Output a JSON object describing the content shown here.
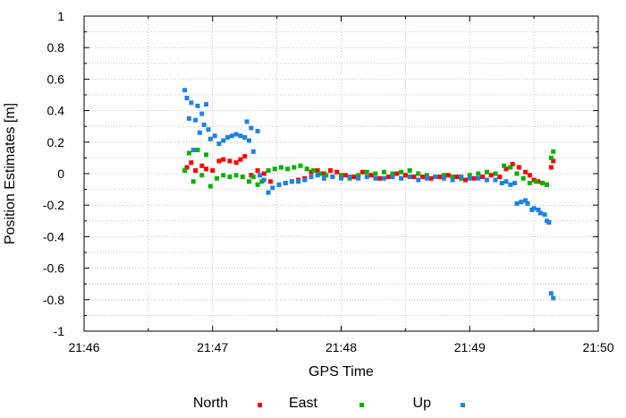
{
  "chart_data": {
    "type": "scatter",
    "xlabel": "GPS Time",
    "ylabel": "Position Estimates [m]",
    "x_ticks": [
      "21:46",
      "21:47",
      "21:48",
      "21:49",
      "21:50"
    ],
    "xlim": [
      "21:46",
      "21:50"
    ],
    "ylim": [
      -1,
      1
    ],
    "y_ticks": [
      1,
      0.8,
      0.6,
      0.4,
      0.2,
      0,
      -0.2,
      -0.4,
      -0.6,
      -0.8,
      -1
    ],
    "y_tick_labels": [
      "1",
      "0.8",
      "0.6",
      "0.4",
      "0.2",
      "0",
      "-0.2",
      "-0.4",
      "-0.6",
      "-0.8",
      "-1"
    ],
    "grid": true,
    "legend_position": "bottom",
    "series": [
      {
        "name": "North",
        "color": "#ff0000",
        "points": [
          [
            "21:46:48",
            0.04
          ],
          [
            "21:46:50",
            0.07
          ],
          [
            "21:46:52",
            0.02
          ],
          [
            "21:46:55",
            0.05
          ],
          [
            "21:46:57",
            0.03
          ],
          [
            "21:47:00",
            0.02
          ],
          [
            "21:47:03",
            0.08
          ],
          [
            "21:47:05",
            0.09
          ],
          [
            "21:47:08",
            0.08
          ],
          [
            "21:47:11",
            0.07
          ],
          [
            "21:47:13",
            0.09
          ],
          [
            "21:47:15",
            0.11
          ],
          [
            "21:47:18",
            -0.01
          ],
          [
            "21:47:21",
            0.02
          ],
          [
            "21:47:24",
            0.0
          ],
          [
            "21:47:27",
            -0.05
          ],
          [
            "21:47:31",
            -0.07
          ],
          [
            "21:47:34",
            -0.06
          ],
          [
            "21:47:37",
            -0.05
          ],
          [
            "21:47:40",
            -0.04
          ],
          [
            "21:47:43",
            -0.03
          ],
          [
            "21:47:46",
            0.01
          ],
          [
            "21:47:49",
            0.02
          ],
          [
            "21:47:52",
            0.0
          ],
          [
            "21:47:55",
            0.02
          ],
          [
            "21:47:58",
            0.01
          ],
          [
            "21:48:02",
            -0.01
          ],
          [
            "21:48:06",
            -0.02
          ],
          [
            "21:48:10",
            0.01
          ],
          [
            "21:48:14",
            -0.01
          ],
          [
            "21:48:18",
            -0.03
          ],
          [
            "21:48:22",
            -0.02
          ],
          [
            "21:48:26",
            0.0
          ],
          [
            "21:48:30",
            -0.01
          ],
          [
            "21:48:34",
            -0.02
          ],
          [
            "21:48:38",
            -0.02
          ],
          [
            "21:48:42",
            -0.03
          ],
          [
            "21:48:46",
            -0.02
          ],
          [
            "21:48:50",
            -0.01
          ],
          [
            "21:48:54",
            -0.02
          ],
          [
            "21:48:58",
            -0.04
          ],
          [
            "21:49:02",
            -0.03
          ],
          [
            "21:49:06",
            -0.02
          ],
          [
            "21:49:10",
            -0.01
          ],
          [
            "21:49:14",
            -0.02
          ],
          [
            "21:49:17",
            0.03
          ],
          [
            "21:49:20",
            0.06
          ],
          [
            "21:49:23",
            0.04
          ],
          [
            "21:49:26",
            0.01
          ],
          [
            "21:49:28",
            -0.01
          ],
          [
            "21:49:30",
            -0.04
          ],
          [
            "21:49:32",
            -0.05
          ],
          [
            "21:49:34",
            -0.06
          ],
          [
            "21:49:36",
            -0.07
          ],
          [
            "21:49:38",
            0.04
          ],
          [
            "21:49:39",
            0.08
          ]
        ]
      },
      {
        "name": "East",
        "color": "#00b400",
        "points": [
          [
            "21:46:47",
            0.02
          ],
          [
            "21:46:49",
            0.13
          ],
          [
            "21:46:51",
            -0.05
          ],
          [
            "21:46:53",
            0.15
          ],
          [
            "21:46:55",
            -0.01
          ],
          [
            "21:46:57",
            0.12
          ],
          [
            "21:46:59",
            -0.08
          ],
          [
            "21:47:02",
            -0.03
          ],
          [
            "21:47:05",
            -0.01
          ],
          [
            "21:47:08",
            -0.02
          ],
          [
            "21:47:11",
            -0.01
          ],
          [
            "21:47:14",
            -0.02
          ],
          [
            "21:47:17",
            -0.05
          ],
          [
            "21:47:19",
            -0.02
          ],
          [
            "21:47:21",
            -0.07
          ],
          [
            "21:47:23",
            -0.05
          ],
          [
            "21:47:26",
            0.02
          ],
          [
            "21:47:29",
            0.03
          ],
          [
            "21:47:32",
            0.04
          ],
          [
            "21:47:35",
            0.03
          ],
          [
            "21:47:38",
            0.04
          ],
          [
            "21:47:41",
            0.05
          ],
          [
            "21:47:44",
            0.03
          ],
          [
            "21:47:47",
            0.02
          ],
          [
            "21:47:50",
            0.0
          ],
          [
            "21:47:53",
            -0.01
          ],
          [
            "21:47:56",
            -0.02
          ],
          [
            "21:48:00",
            -0.01
          ],
          [
            "21:48:04",
            -0.03
          ],
          [
            "21:48:08",
            -0.01
          ],
          [
            "21:48:12",
            0.01
          ],
          [
            "21:48:16",
            0.0
          ],
          [
            "21:48:20",
            0.01
          ],
          [
            "21:48:24",
            0.0
          ],
          [
            "21:48:28",
            0.01
          ],
          [
            "21:48:32",
            0.02
          ],
          [
            "21:48:36",
            0.0
          ],
          [
            "21:48:40",
            -0.01
          ],
          [
            "21:48:44",
            -0.02
          ],
          [
            "21:48:48",
            -0.01
          ],
          [
            "21:48:52",
            -0.02
          ],
          [
            "21:48:56",
            -0.03
          ],
          [
            "21:49:00",
            -0.01
          ],
          [
            "21:49:04",
            0.0
          ],
          [
            "21:49:08",
            0.01
          ],
          [
            "21:49:12",
            0.0
          ],
          [
            "21:49:16",
            0.05
          ],
          [
            "21:49:19",
            0.04
          ],
          [
            "21:49:22",
            0.0
          ],
          [
            "21:49:25",
            -0.03
          ],
          [
            "21:49:28",
            -0.06
          ],
          [
            "21:49:31",
            -0.05
          ],
          [
            "21:49:34",
            -0.06
          ],
          [
            "21:49:36",
            -0.07
          ],
          [
            "21:49:38",
            0.1
          ],
          [
            "21:49:39",
            0.14
          ]
        ]
      },
      {
        "name": "Up",
        "color": "#1e82e6",
        "points": [
          [
            "21:46:47",
            0.53
          ],
          [
            "21:46:48",
            0.48
          ],
          [
            "21:46:49",
            0.35
          ],
          [
            "21:46:50",
            0.45
          ],
          [
            "21:46:51",
            0.15
          ],
          [
            "21:46:52",
            0.34
          ],
          [
            "21:46:53",
            0.43
          ],
          [
            "21:46:54",
            0.26
          ],
          [
            "21:46:55",
            0.38
          ],
          [
            "21:46:56",
            0.31
          ],
          [
            "21:46:57",
            0.44
          ],
          [
            "21:46:58",
            0.28
          ],
          [
            "21:46:59",
            0.22
          ],
          [
            "21:47:01",
            0.24
          ],
          [
            "21:47:03",
            0.19
          ],
          [
            "21:47:05",
            0.21
          ],
          [
            "21:47:07",
            0.23
          ],
          [
            "21:47:09",
            0.24
          ],
          [
            "21:47:11",
            0.25
          ],
          [
            "21:47:13",
            0.24
          ],
          [
            "21:47:15",
            0.23
          ],
          [
            "21:47:16",
            0.33
          ],
          [
            "21:47:17",
            0.21
          ],
          [
            "21:47:18",
            0.29
          ],
          [
            "21:47:19",
            0.14
          ],
          [
            "21:47:21",
            0.27
          ],
          [
            "21:47:22",
            -0.01
          ],
          [
            "21:47:24",
            -0.04
          ],
          [
            "21:47:26",
            -0.12
          ],
          [
            "21:47:28",
            -0.09
          ],
          [
            "21:47:31",
            -0.07
          ],
          [
            "21:47:34",
            -0.06
          ],
          [
            "21:47:37",
            -0.05
          ],
          [
            "21:47:40",
            -0.05
          ],
          [
            "21:47:43",
            -0.04
          ],
          [
            "21:47:46",
            -0.02
          ],
          [
            "21:47:49",
            -0.01
          ],
          [
            "21:47:52",
            -0.03
          ],
          [
            "21:47:56",
            -0.02
          ],
          [
            "21:48:00",
            -0.03
          ],
          [
            "21:48:04",
            -0.02
          ],
          [
            "21:48:08",
            -0.03
          ],
          [
            "21:48:12",
            -0.02
          ],
          [
            "21:48:16",
            -0.03
          ],
          [
            "21:48:20",
            -0.03
          ],
          [
            "21:48:24",
            -0.02
          ],
          [
            "21:48:28",
            -0.03
          ],
          [
            "21:48:32",
            -0.02
          ],
          [
            "21:48:36",
            -0.04
          ],
          [
            "21:48:40",
            -0.03
          ],
          [
            "21:48:44",
            -0.02
          ],
          [
            "21:48:48",
            -0.03
          ],
          [
            "21:48:52",
            -0.04
          ],
          [
            "21:48:56",
            -0.02
          ],
          [
            "21:49:00",
            -0.03
          ],
          [
            "21:49:04",
            -0.03
          ],
          [
            "21:49:08",
            -0.04
          ],
          [
            "21:49:12",
            -0.04
          ],
          [
            "21:49:15",
            -0.06
          ],
          [
            "21:49:17",
            -0.05
          ],
          [
            "21:49:19",
            -0.07
          ],
          [
            "21:49:21",
            -0.06
          ],
          [
            "21:49:22",
            -0.19
          ],
          [
            "21:49:24",
            -0.18
          ],
          [
            "21:49:26",
            -0.17
          ],
          [
            "21:49:27",
            -0.19
          ],
          [
            "21:49:29",
            -0.23
          ],
          [
            "21:49:30",
            -0.22
          ],
          [
            "21:49:32",
            -0.23
          ],
          [
            "21:49:33",
            -0.25
          ],
          [
            "21:49:35",
            -0.26
          ],
          [
            "21:49:36",
            -0.3
          ],
          [
            "21:49:37",
            -0.31
          ],
          [
            "21:49:38",
            -0.76
          ],
          [
            "21:49:39",
            -0.79
          ]
        ]
      }
    ]
  }
}
